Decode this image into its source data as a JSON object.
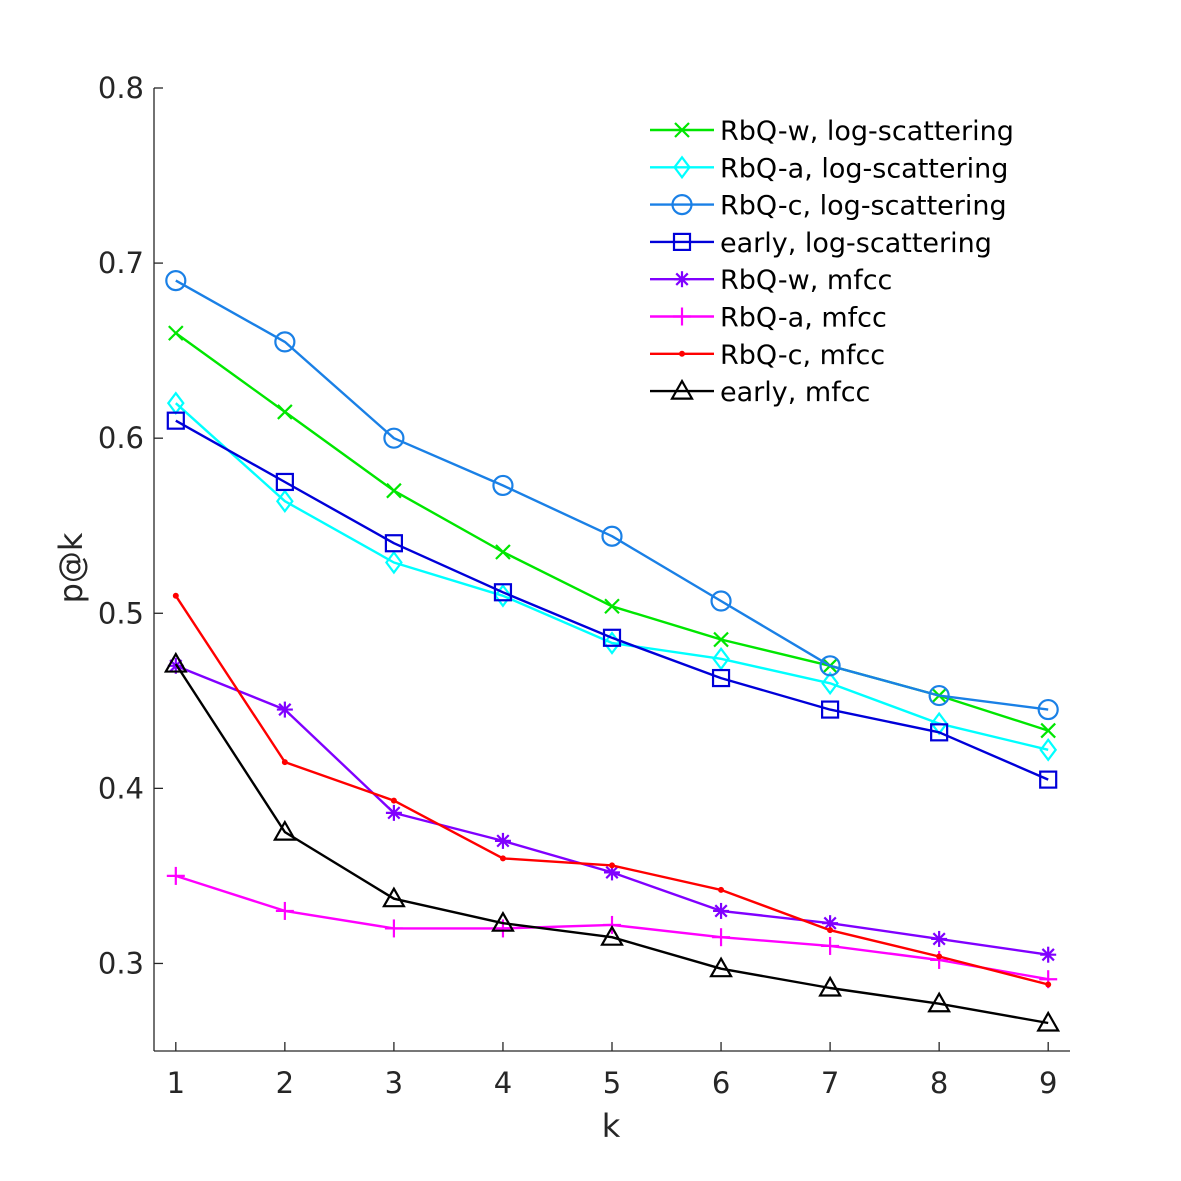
{
  "chart_data": {
    "type": "line",
    "title": "",
    "xlabel": "k",
    "ylabel": "p@k",
    "xlim": [
      0.8,
      9.2
    ],
    "ylim": [
      0.25,
      0.8
    ],
    "xticks": [
      1,
      2,
      3,
      4,
      5,
      6,
      7,
      8,
      9
    ],
    "yticks": [
      0.3,
      0.4,
      0.5,
      0.6,
      0.7,
      0.8
    ],
    "xtick_labels": [
      "1",
      "2",
      "3",
      "4",
      "5",
      "6",
      "7",
      "8",
      "9"
    ],
    "ytick_labels": [
      "0.3",
      "0.4",
      "0.5",
      "0.6",
      "0.7",
      "0.8"
    ],
    "grid": false,
    "legend_position": "top-right",
    "x": [
      1,
      2,
      3,
      4,
      5,
      6,
      7,
      8,
      9
    ],
    "series": [
      {
        "name": "RbQ-w, log-scattering",
        "color": "#00e600",
        "marker": "x",
        "values": [
          0.66,
          0.615,
          0.57,
          0.535,
          0.504,
          0.485,
          0.47,
          0.453,
          0.433
        ]
      },
      {
        "name": "RbQ-a, log-scattering",
        "color": "#00ffff",
        "marker": "diamond",
        "values": [
          0.62,
          0.564,
          0.529,
          0.51,
          0.483,
          0.474,
          0.46,
          0.437,
          0.422
        ]
      },
      {
        "name": "RbQ-c, log-scattering",
        "color": "#1a80e6",
        "marker": "circle",
        "values": [
          0.69,
          0.655,
          0.6,
          0.573,
          0.544,
          0.507,
          0.47,
          0.453,
          0.445
        ]
      },
      {
        "name": "early, log-scattering",
        "color": "#0000d9",
        "marker": "square",
        "values": [
          0.61,
          0.575,
          0.54,
          0.512,
          0.486,
          0.463,
          0.445,
          0.432,
          0.405
        ]
      },
      {
        "name": "RbQ-w, mfcc",
        "color": "#8000ff",
        "marker": "asterisk",
        "values": [
          0.47,
          0.445,
          0.386,
          0.37,
          0.352,
          0.33,
          0.323,
          0.314,
          0.305
        ]
      },
      {
        "name": "RbQ-a, mfcc",
        "color": "#ff00ff",
        "marker": "plus",
        "values": [
          0.35,
          0.33,
          0.32,
          0.32,
          0.322,
          0.315,
          0.31,
          0.302,
          0.291
        ]
      },
      {
        "name": "RbQ-c, mfcc",
        "color": "#ff0000",
        "marker": "point",
        "values": [
          0.51,
          0.415,
          0.393,
          0.36,
          0.356,
          0.342,
          0.319,
          0.304,
          0.288
        ]
      },
      {
        "name": "early, mfcc",
        "color": "#000000",
        "marker": "triangle",
        "values": [
          0.471,
          0.375,
          0.337,
          0.323,
          0.315,
          0.297,
          0.286,
          0.277,
          0.266
        ]
      }
    ]
  }
}
